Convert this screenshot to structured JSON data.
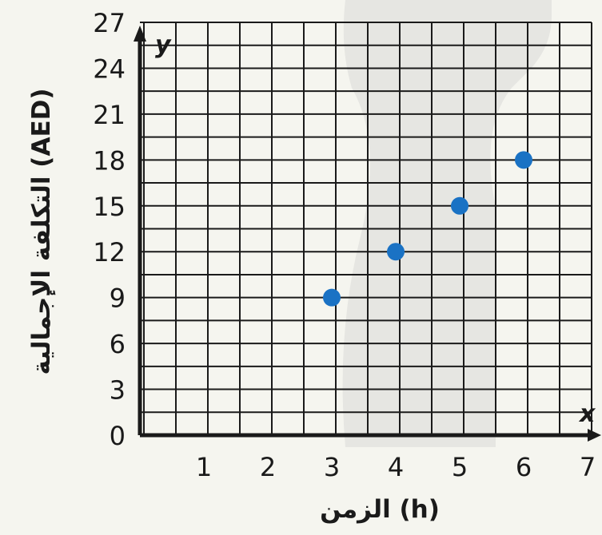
{
  "chart_data": {
    "type": "scatter",
    "x_tick_labels": [
      "1",
      "2",
      "3",
      "4",
      "5",
      "6",
      "7"
    ],
    "y_tick_labels": [
      "0",
      "3",
      "6",
      "9",
      "12",
      "15",
      "18",
      "21",
      "24",
      "27"
    ],
    "xlim": [
      0,
      7
    ],
    "ylim": [
      0,
      27
    ],
    "x_letter": "x",
    "y_letter": "y",
    "xlabel": "الزمن (h)",
    "ylabel": "التكلفة الإجمالية (AED)",
    "grid": true,
    "points": [
      {
        "x": 3,
        "y": 9
      },
      {
        "x": 4,
        "y": 12
      },
      {
        "x": 5,
        "y": 15
      },
      {
        "x": 6,
        "y": 18
      }
    ],
    "colors": {
      "point": "#1a72c4",
      "axis": "#1a1a1a",
      "grid": "#1a1a1a",
      "background": "#f5f5ef",
      "shade": "#e6e6e2"
    }
  }
}
